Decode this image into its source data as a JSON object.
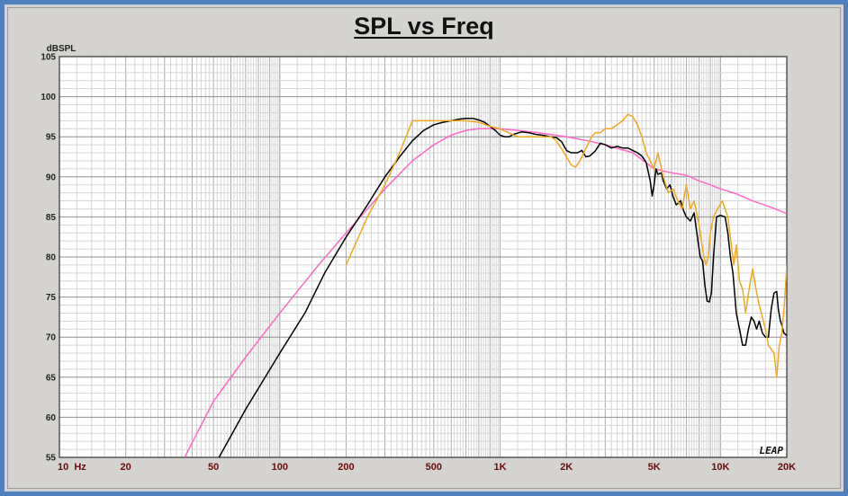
{
  "chart_data": {
    "type": "line",
    "title": "SPL vs Freq",
    "ylabel": "dBSPL",
    "xscale": "log",
    "xlim": [
      10,
      20000
    ],
    "ylim": [
      55,
      105
    ],
    "yticks": [
      105,
      100,
      95,
      90,
      85,
      80,
      75,
      70,
      65,
      60,
      55
    ],
    "xticks": [
      {
        "value": 10,
        "label": "10  Hz"
      },
      {
        "value": 20,
        "label": "20"
      },
      {
        "value": 50,
        "label": "50"
      },
      {
        "value": 100,
        "label": "100"
      },
      {
        "value": 200,
        "label": "200"
      },
      {
        "value": 500,
        "label": "500"
      },
      {
        "value": 1000,
        "label": "1K"
      },
      {
        "value": 2000,
        "label": "2K"
      },
      {
        "value": 5000,
        "label": "5K"
      },
      {
        "value": 10000,
        "label": "10K"
      },
      {
        "value": 20000,
        "label": "20K"
      }
    ],
    "grid": true,
    "series": [
      {
        "color": "#ff69c8",
        "points": [
          [
            37,
            55
          ],
          [
            50,
            62
          ],
          [
            70,
            67.5
          ],
          [
            100,
            73
          ],
          [
            150,
            79
          ],
          [
            200,
            83
          ],
          [
            250,
            86
          ],
          [
            300,
            88.5
          ],
          [
            400,
            92
          ],
          [
            500,
            94
          ],
          [
            600,
            95.2
          ],
          [
            700,
            95.8
          ],
          [
            800,
            96
          ],
          [
            1000,
            96
          ],
          [
            1200,
            95.8
          ],
          [
            1500,
            95.5
          ],
          [
            2000,
            95
          ],
          [
            2500,
            94.5
          ],
          [
            3000,
            94
          ],
          [
            4000,
            93
          ],
          [
            5000,
            91
          ],
          [
            6000,
            90.5
          ],
          [
            7000,
            90.2
          ],
          [
            8000,
            89.5
          ],
          [
            9000,
            89
          ],
          [
            10000,
            88.5
          ],
          [
            12000,
            87.8
          ],
          [
            14000,
            87
          ],
          [
            17000,
            86.2
          ],
          [
            20000,
            85.4
          ]
        ]
      },
      {
        "color": "#000000",
        "points": [
          [
            53,
            55
          ],
          [
            70,
            61
          ],
          [
            100,
            68
          ],
          [
            130,
            73
          ],
          [
            160,
            78
          ],
          [
            200,
            82.5
          ],
          [
            250,
            86.5
          ],
          [
            300,
            90
          ],
          [
            350,
            92.5
          ],
          [
            400,
            94.5
          ],
          [
            450,
            95.8
          ],
          [
            500,
            96.5
          ],
          [
            550,
            96.8
          ],
          [
            600,
            97
          ],
          [
            650,
            97.2
          ],
          [
            700,
            97.3
          ],
          [
            750,
            97.3
          ],
          [
            800,
            97.1
          ],
          [
            850,
            96.8
          ],
          [
            900,
            96.3
          ],
          [
            950,
            95.8
          ],
          [
            1000,
            95.2
          ],
          [
            1050,
            95
          ],
          [
            1100,
            95
          ],
          [
            1150,
            95.3
          ],
          [
            1250,
            95.6
          ],
          [
            1350,
            95.5
          ],
          [
            1450,
            95.3
          ],
          [
            1550,
            95.2
          ],
          [
            1700,
            95
          ],
          [
            1800,
            94.9
          ],
          [
            1900,
            94.4
          ],
          [
            2000,
            93.3
          ],
          [
            2100,
            93
          ],
          [
            2250,
            93
          ],
          [
            2350,
            93.3
          ],
          [
            2450,
            92.5
          ],
          [
            2550,
            92.6
          ],
          [
            2700,
            93.2
          ],
          [
            2850,
            94.2
          ],
          [
            3000,
            94
          ],
          [
            3200,
            93.6
          ],
          [
            3400,
            93.8
          ],
          [
            3600,
            93.6
          ],
          [
            3800,
            93.6
          ],
          [
            4000,
            93.3
          ],
          [
            4200,
            93
          ],
          [
            4400,
            92.6
          ],
          [
            4600,
            91.8
          ],
          [
            4800,
            89.5
          ],
          [
            4900,
            87.6
          ],
          [
            5000,
            89
          ],
          [
            5100,
            91
          ],
          [
            5200,
            90.3
          ],
          [
            5400,
            90.5
          ],
          [
            5500,
            89.5
          ],
          [
            5700,
            88.5
          ],
          [
            5900,
            89
          ],
          [
            6100,
            87.5
          ],
          [
            6300,
            86.5
          ],
          [
            6600,
            87
          ],
          [
            6800,
            85.8
          ],
          [
            7000,
            85
          ],
          [
            7300,
            84.5
          ],
          [
            7600,
            85.5
          ],
          [
            7900,
            82
          ],
          [
            8100,
            80
          ],
          [
            8300,
            79.5
          ],
          [
            8500,
            76.5
          ],
          [
            8700,
            74.5
          ],
          [
            8900,
            74.4
          ],
          [
            9100,
            75.5
          ],
          [
            9300,
            80
          ],
          [
            9600,
            85
          ],
          [
            10000,
            85.2
          ],
          [
            10500,
            85
          ],
          [
            10800,
            83
          ],
          [
            11100,
            80
          ],
          [
            11400,
            78
          ],
          [
            11800,
            73
          ],
          [
            12200,
            71
          ],
          [
            12600,
            69
          ],
          [
            13000,
            69
          ],
          [
            13400,
            71
          ],
          [
            13800,
            72.5
          ],
          [
            14200,
            72
          ],
          [
            14600,
            71
          ],
          [
            15000,
            72
          ],
          [
            15500,
            70.5
          ],
          [
            16000,
            70
          ],
          [
            16500,
            70
          ],
          [
            17000,
            73.5
          ],
          [
            17500,
            75.5
          ],
          [
            18000,
            75.7
          ],
          [
            18300,
            73.5
          ],
          [
            18700,
            72
          ],
          [
            19000,
            71.5
          ],
          [
            19400,
            70.5
          ],
          [
            20000,
            70.2
          ]
        ]
      },
      {
        "color": "#f0a820",
        "points": [
          [
            200,
            79
          ],
          [
            250,
            85
          ],
          [
            300,
            89
          ],
          [
            350,
            93
          ],
          [
            400,
            97
          ],
          [
            500,
            97
          ],
          [
            600,
            97
          ],
          [
            700,
            97
          ],
          [
            800,
            96.8
          ],
          [
            900,
            96.3
          ],
          [
            1000,
            96
          ],
          [
            1200,
            95
          ],
          [
            1500,
            95
          ],
          [
            1700,
            95
          ],
          [
            1800,
            94.5
          ],
          [
            1900,
            93.5
          ],
          [
            2000,
            92.5
          ],
          [
            2100,
            91.5
          ],
          [
            2200,
            91.2
          ],
          [
            2300,
            92
          ],
          [
            2400,
            93
          ],
          [
            2500,
            94
          ],
          [
            2600,
            95
          ],
          [
            2700,
            95.5
          ],
          [
            2850,
            95.5
          ],
          [
            3000,
            96
          ],
          [
            3200,
            96
          ],
          [
            3400,
            96.5
          ],
          [
            3600,
            97
          ],
          [
            3800,
            97.8
          ],
          [
            4000,
            97.5
          ],
          [
            4200,
            96.5
          ],
          [
            4400,
            95
          ],
          [
            4600,
            93
          ],
          [
            4800,
            92
          ],
          [
            5000,
            91
          ],
          [
            5200,
            93
          ],
          [
            5500,
            90
          ],
          [
            5800,
            88
          ],
          [
            6100,
            88.5
          ],
          [
            6400,
            87
          ],
          [
            6700,
            86
          ],
          [
            7000,
            89
          ],
          [
            7300,
            86
          ],
          [
            7600,
            87
          ],
          [
            8000,
            84
          ],
          [
            8200,
            82
          ],
          [
            8400,
            80
          ],
          [
            8600,
            79
          ],
          [
            8800,
            80
          ],
          [
            9000,
            83
          ],
          [
            9300,
            85
          ],
          [
            9700,
            86
          ],
          [
            10200,
            87
          ],
          [
            10800,
            85
          ],
          [
            11200,
            81.5
          ],
          [
            11500,
            79
          ],
          [
            11800,
            81.5
          ],
          [
            12200,
            77
          ],
          [
            12600,
            76
          ],
          [
            13000,
            73
          ],
          [
            13500,
            76
          ],
          [
            14000,
            78.5
          ],
          [
            14500,
            76
          ],
          [
            15000,
            74
          ],
          [
            15500,
            72.5
          ],
          [
            16000,
            71
          ],
          [
            16500,
            69
          ],
          [
            17000,
            68.5
          ],
          [
            17500,
            68
          ],
          [
            18000,
            65
          ],
          [
            18500,
            69
          ],
          [
            19000,
            70.5
          ],
          [
            19500,
            74
          ],
          [
            20000,
            79
          ]
        ]
      }
    ]
  },
  "watermark": "LEAP"
}
